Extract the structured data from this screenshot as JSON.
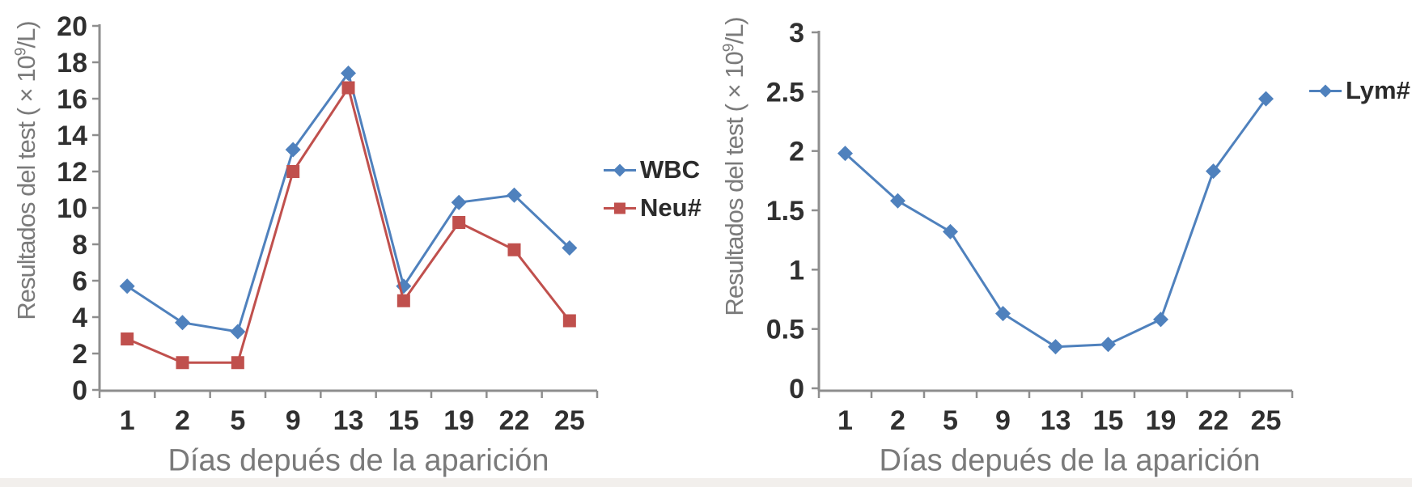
{
  "figure": {
    "description": "Two line charts of blood test results over days after symptom onset"
  },
  "colors": {
    "series_blue": "#4F81BD",
    "series_red": "#C0504D",
    "axis": "#8E8E8E",
    "tick_labels": "#303030",
    "axis_titles": "#7A7A7A",
    "legend_text": "#2B2B2B",
    "background": "#FFFFFF",
    "bottom_strip": "#F2EFEC"
  },
  "chart_data": [
    {
      "type": "line",
      "title": "",
      "categories": [
        "1",
        "2",
        "5",
        "9",
        "13",
        "15",
        "19",
        "22",
        "25"
      ],
      "xlabel": "Días depués de la aparición",
      "ylabel_prefix": "Resultados del test ( × 10",
      "ylabel_sup": "9",
      "ylabel_suffix": "/L)",
      "ylim": [
        0,
        20
      ],
      "ytick_step": 2,
      "yticks": [
        0,
        2,
        4,
        6,
        8,
        10,
        12,
        14,
        16,
        18,
        20
      ],
      "grid": false,
      "legend_position": "right-middle",
      "series": [
        {
          "name": "WBC",
          "marker": "diamond",
          "color": "#4F81BD",
          "values": [
            5.7,
            3.7,
            3.2,
            13.2,
            17.4,
            5.7,
            10.3,
            10.7,
            7.8
          ]
        },
        {
          "name": "Neu#",
          "marker": "square",
          "color": "#C0504D",
          "values": [
            2.8,
            1.5,
            1.5,
            12.0,
            16.6,
            4.9,
            9.2,
            7.7,
            3.8
          ]
        }
      ]
    },
    {
      "type": "line",
      "title": "",
      "categories": [
        "1",
        "2",
        "5",
        "9",
        "13",
        "15",
        "19",
        "22",
        "25"
      ],
      "xlabel": "Días depués de la aparición",
      "ylabel_prefix": "Resultados del test ( × 10",
      "ylabel_sup": "9",
      "ylabel_suffix": "/L)",
      "ylim": [
        0,
        3
      ],
      "ytick_step": 0.5,
      "yticks": [
        0,
        0.5,
        1,
        1.5,
        2,
        2.5,
        3
      ],
      "grid": false,
      "legend_position": "right-top",
      "series": [
        {
          "name": "Lym#",
          "marker": "diamond",
          "color": "#4F81BD",
          "values": [
            1.98,
            1.58,
            1.32,
            0.63,
            0.35,
            0.37,
            0.58,
            1.83,
            2.44
          ]
        }
      ]
    }
  ]
}
